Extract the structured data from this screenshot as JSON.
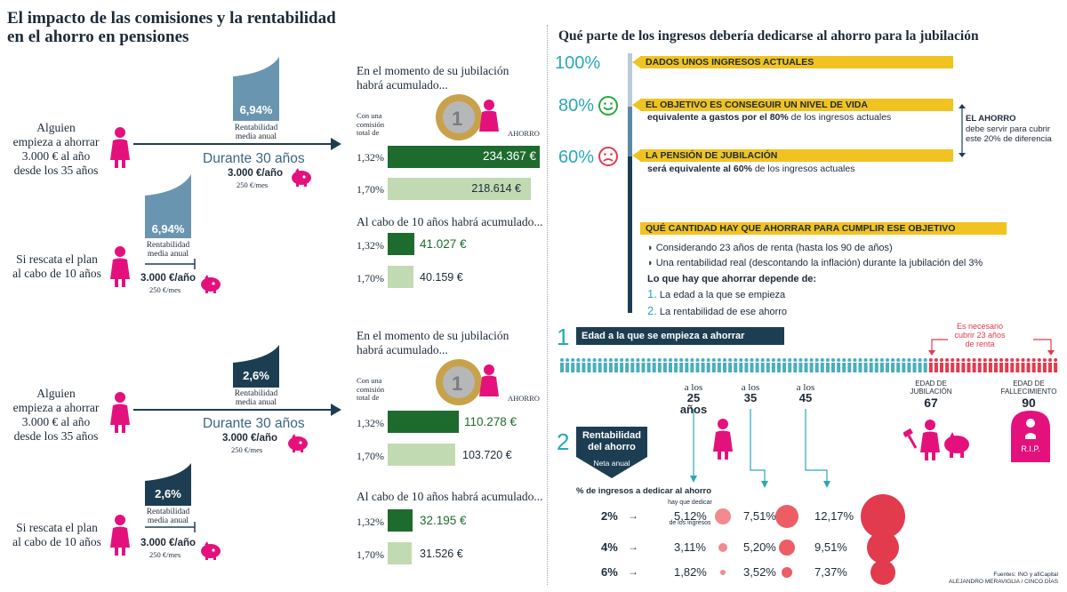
{
  "left": {
    "title_line1": "El impacto de las comisiones y la rentabilidad",
    "title_line2": "en el ahorro en pensiones",
    "sections": [
      {
        "person1": [
          "Alguien",
          "empieza a ahorrar",
          "3.000 € al año",
          "desde los 35 años"
        ],
        "rent_value": "6,94%",
        "rent_label": [
          "Rentabilidad",
          "media anual"
        ],
        "duration": "Durante 30 años",
        "annual": "3.000 €/año",
        "monthly": "250 €/mes",
        "person2": [
          "Si rescata el plan",
          "al cabo de 10 años"
        ],
        "rent_value2": "6,94%",
        "rent_label2": [
          "Rentabilidad",
          "media anual"
        ],
        "annual2": "3.000 €/año",
        "monthly2": "250 €/mes",
        "retire_head": [
          "En el momento de su jubilación",
          "habrá acumulado..."
        ],
        "commission_label": [
          "Con una",
          "comisión",
          "total de"
        ],
        "ahorro": "AHORRO",
        "rows30": [
          {
            "pct": "1,32%",
            "value": "234.367 €"
          },
          {
            "pct": "1,70%",
            "value": "218.614 €"
          }
        ],
        "ten_head": "Al cabo de 10 años habrá acumulado...",
        "rows10": [
          {
            "pct": "1,32%",
            "value": "41.027 €"
          },
          {
            "pct": "1,70%",
            "value": "40.159 €"
          }
        ]
      },
      {
        "person1": [
          "Alguien",
          "empieza a ahorrar",
          "3.000 € al año",
          "desde los 35 años"
        ],
        "rent_value": "2,6%",
        "rent_label": [
          "Rentabilidad",
          "media anual"
        ],
        "duration": "Durante 30 años",
        "annual": "3.000 €/año",
        "monthly": "250 €/mes",
        "person2": [
          "Si rescata el plan",
          "al cabo de 10 años"
        ],
        "rent_value2": "2,6%",
        "rent_label2": [
          "Rentabilidad",
          "media anual"
        ],
        "annual2": "3.000 €/año",
        "monthly2": "250 €/mes",
        "retire_head": [
          "En el momento de su jubilación",
          "habrá acumulado..."
        ],
        "commission_label": [
          "Con una",
          "comisión",
          "total de"
        ],
        "ahorro": "AHORRO",
        "rows30": [
          {
            "pct": "1,32%",
            "value": "110.278 €"
          },
          {
            "pct": "1,70%",
            "value": "103.720 €"
          }
        ],
        "ten_head": "Al cabo de 10 años habrá acumulado...",
        "rows10": [
          {
            "pct": "1,32%",
            "value": "32.195 €"
          },
          {
            "pct": "1,70%",
            "value": "31.526 €"
          }
        ]
      }
    ]
  },
  "right": {
    "title": "Qué parte de los ingresos debería dedicarse al ahorro para la jubilación",
    "levels": {
      "p100": "100%",
      "p80": "80%",
      "p60": "60%"
    },
    "bar1": "DADOS UNOS INGRESOS ACTUALES",
    "bar2": "EL OBJETIVO ES CONSEGUIR UN NIVEL DE VIDA",
    "bar2_sub_a": "equivalente a gastos por el 80%",
    "bar2_sub_b": " de los ingresos actuales",
    "bar3": "LA PENSIÓN DE JUBILACIÓN",
    "bar3_sub_a": "será equivalente al 60%",
    "bar3_sub_b": " de los ingresos actuales",
    "note": [
      "EL AHORRO",
      "debe servir para cubrir",
      "este 20% de diferencia"
    ],
    "bar4": "QUÉ CANTIDAD HAY QUE AHORRAR PARA CUMPLIR ESE OBJETIVO",
    "bullets": [
      "Considerando 23 años de renta (hasta los 90 de años)",
      "Una rentabilidad real (descontando la inflación) durante la jubilación del 3%"
    ],
    "depends": "Lo que hay que ahorrar depende de:",
    "dep_items": [
      {
        "num": "1.",
        "text": "La edad a la que se empieza"
      },
      {
        "num": "2.",
        "text": "La rentabilidad de ese ahorro"
      }
    ],
    "sec1_num": "1",
    "sec1_label": "Edad a la que se empieza a ahorrar",
    "cover_note": [
      "Es necesario",
      "cubrir 23 años",
      "de renta"
    ],
    "ages": [
      {
        "pre": "a los",
        "age": "25 años"
      },
      {
        "pre": "a los",
        "age": "35"
      },
      {
        "pre": "a los",
        "age": "45"
      }
    ],
    "retire_label": [
      "EDAD DE",
      "JUBILACIÓN"
    ],
    "retire_age": "67",
    "death_label": [
      "EDAD DE",
      "FALLECIMIENTO"
    ],
    "death_age": "90",
    "rip": "R.I.P.",
    "sec2_num": "2",
    "sec2_label": [
      "Rentabilidad",
      "del ahorro"
    ],
    "neta": "Neta anual",
    "table_head": "% de ingresos a dedicar al ahorro",
    "hay_que": [
      "hay que dedicar"
    ],
    "de_ingresos": "de los ingresos",
    "table_rows": [
      {
        "rate": "2%",
        "v25": "5,12%",
        "v35": "7,51%",
        "v45": "12,17%"
      },
      {
        "rate": "4%",
        "v25": "3,11%",
        "v35": "5,20%",
        "v45": "9,51%"
      },
      {
        "rate": "6%",
        "v25": "1,82%",
        "v35": "3,52%",
        "v45": "7,37%"
      }
    ],
    "sources": "Fuentes: ING y afiCapital",
    "credit": "ALEJANDRO MERAVIGLIA / CINCO DÍAS",
    "colors": {
      "navy": "#1d3e52",
      "teal": "#29a8b8",
      "yellow": "#f1c320",
      "pink": "#e4117c",
      "red": "#e23b4e"
    }
  }
}
